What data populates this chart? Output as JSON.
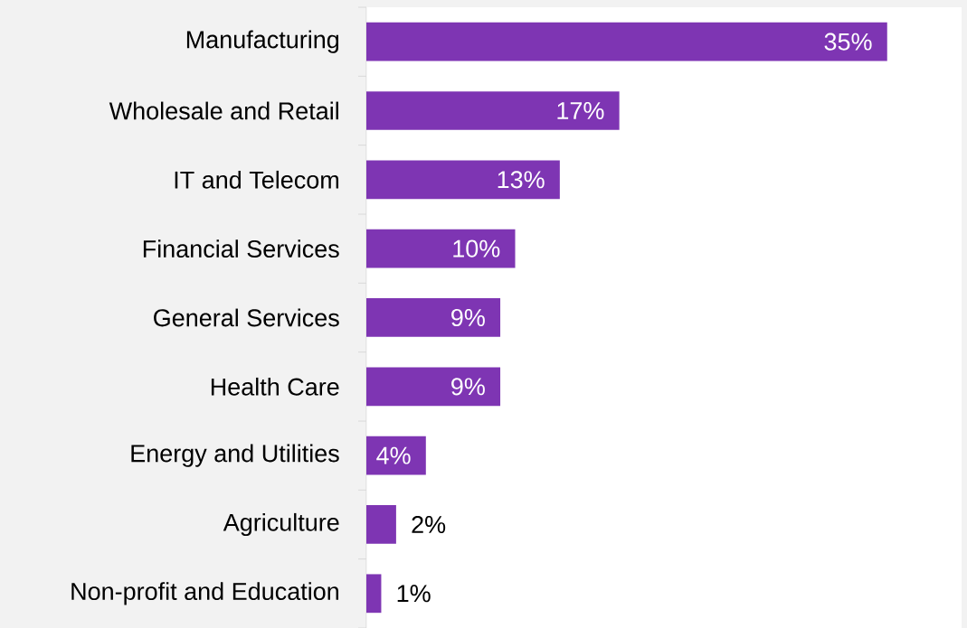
{
  "chart_data": {
    "type": "bar",
    "orientation": "horizontal",
    "categories": [
      "Manufacturing",
      "Wholesale and Retail",
      "IT and Telecom",
      "Financial Services",
      "General Services",
      "Health Care",
      "Energy and Utilities",
      "Agriculture",
      "Non-profit and Education"
    ],
    "values": [
      35,
      17,
      13,
      10,
      9,
      9,
      4,
      2,
      1
    ],
    "value_labels": [
      "35%",
      "17%",
      "13%",
      "10%",
      "9%",
      "9%",
      "4%",
      "2%",
      "1%"
    ],
    "color": "#7e35b3",
    "xlim": [
      0,
      40
    ],
    "tick_labels": "y"
  }
}
